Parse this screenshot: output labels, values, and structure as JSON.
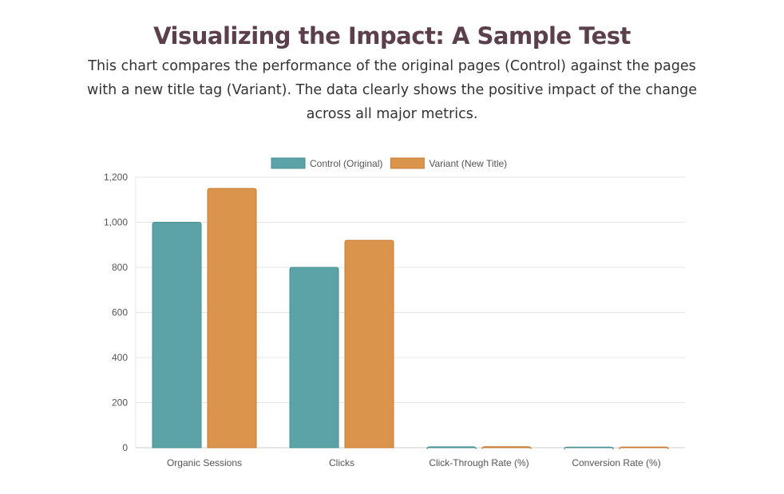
{
  "header": {
    "title": "Visualizing the Impact: A Sample Test",
    "description": "This chart compares the performance of the original pages (Control) against the pages with a new title tag (Variant). The data clearly shows the positive impact of the change across all major metrics."
  },
  "chart_data": {
    "type": "bar",
    "categories": [
      "Organic Sessions",
      "Clicks",
      "Click-Through Rate (%)",
      "Conversion Rate (%)"
    ],
    "series": [
      {
        "name": "Control (Original)",
        "values": [
          1000,
          800,
          4.0,
          2.5
        ],
        "color": "#5ba3a6",
        "border": "#4a8f92"
      },
      {
        "name": "Variant (New Title)",
        "values": [
          1150,
          920,
          4.6,
          3.0
        ],
        "color": "#db944c",
        "border": "#c67c36"
      }
    ],
    "ylim": [
      0,
      1200
    ],
    "yticks": [
      0,
      200,
      400,
      600,
      800,
      1000,
      1200
    ],
    "ytick_labels": [
      "0",
      "200",
      "400",
      "600",
      "800",
      "1,000",
      "1,200"
    ],
    "legend": "top-center",
    "grid": true
  }
}
